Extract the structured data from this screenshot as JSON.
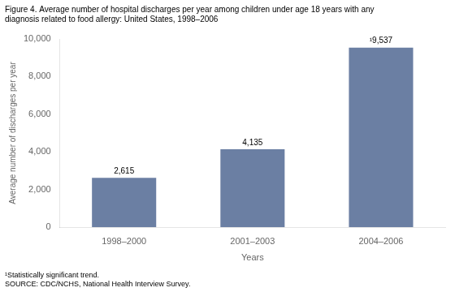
{
  "chart_data": {
    "type": "bar",
    "title": [
      "Figure 4. Average number of hospital discharges per year among children under age 18 years with any",
      "diagnosis related to food allergy: United States, 1998–2006"
    ],
    "categories": [
      "1998–2000",
      "2001–2003",
      "2004–2006"
    ],
    "values": [
      2615,
      4135,
      9537
    ],
    "value_labels": [
      "2,615",
      "4,135",
      "¹9,537"
    ],
    "data_labels": true,
    "color": "#6b7fa3",
    "x_label": "Years",
    "y_label": "Average number of discharges per year",
    "ylim": [
      0,
      10000
    ],
    "yticks": [
      0,
      {
        "value": 2000,
        "label": "2,000"
      },
      {
        "value": 4000,
        "label": "4,000"
      },
      {
        "value": 6000,
        "label": "6,000"
      },
      {
        "value": 8000,
        "label": "8,000"
      },
      {
        "value": 10000,
        "label": "10,000"
      }
    ],
    "grid": false,
    "annotations": [
      "¹Statistically significant trend.",
      "SOURCE: CDC/NCHS, National Health Interview Survey."
    ]
  }
}
